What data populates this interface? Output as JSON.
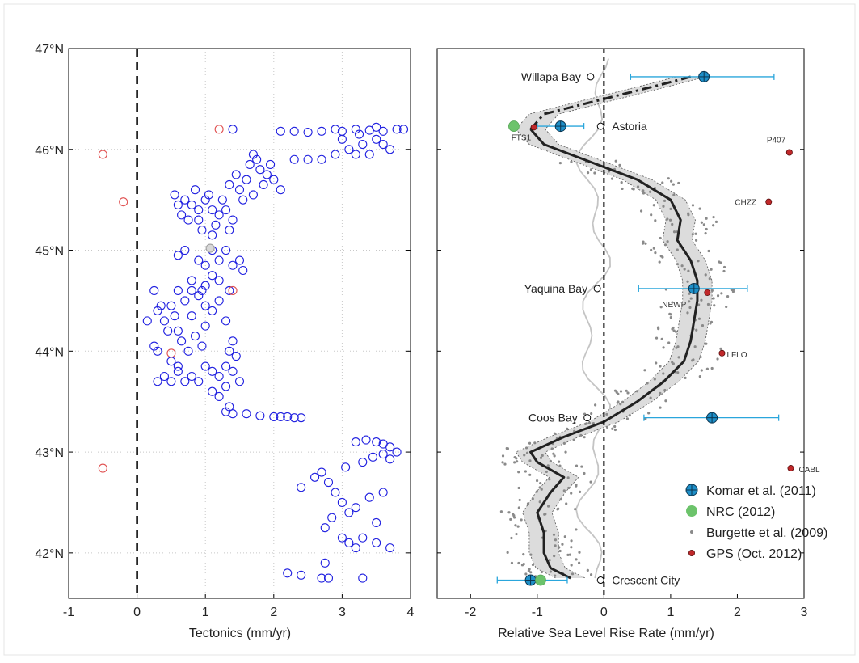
{
  "chart_data": [
    {
      "type": "scatter",
      "xlabel": "Tectonics (mm/yr)",
      "ylabel": "",
      "xlim": [
        -1,
        4
      ],
      "ylim": [
        41.55,
        47
      ],
      "x_ticks": [
        "-1",
        "0",
        "1",
        "2",
        "3",
        "4"
      ],
      "y_ticks": [
        "42°N",
        "43°N",
        "44°N",
        "45°N",
        "46°N",
        "47°N"
      ],
      "grid": true,
      "reference_line_x": 0,
      "series": [
        {
          "color": "#2020e0",
          "points": [
            [
              0.7,
              45.5
            ],
            [
              0.8,
              45.45
            ],
            [
              0.9,
              45.4
            ],
            [
              1.0,
              45.5
            ],
            [
              0.65,
              45.35
            ],
            [
              0.75,
              45.3
            ],
            [
              1.1,
              45.4
            ],
            [
              0.85,
              45.6
            ],
            [
              1.2,
              45.35
            ],
            [
              0.95,
              45.2
            ],
            [
              1.05,
              45.55
            ],
            [
              1.15,
              45.25
            ],
            [
              1.3,
              45.4
            ],
            [
              0.6,
              45.45
            ],
            [
              0.9,
              45.3
            ],
            [
              1.25,
              45.5
            ],
            [
              1.35,
              45.2
            ],
            [
              1.4,
              45.3
            ],
            [
              0.55,
              45.55
            ],
            [
              1.1,
              45.15
            ],
            [
              1.5,
              45.6
            ],
            [
              1.6,
              45.7
            ],
            [
              1.7,
              45.55
            ],
            [
              1.8,
              45.8
            ],
            [
              1.9,
              45.75
            ],
            [
              2.0,
              45.7
            ],
            [
              1.65,
              45.85
            ],
            [
              1.75,
              45.9
            ],
            [
              1.85,
              45.65
            ],
            [
              1.55,
              45.5
            ],
            [
              1.95,
              45.85
            ],
            [
              2.1,
              45.6
            ],
            [
              1.45,
              45.75
            ],
            [
              1.35,
              45.65
            ],
            [
              1.7,
              45.95
            ],
            [
              2.3,
              45.9
            ],
            [
              2.5,
              45.9
            ],
            [
              2.7,
              45.9
            ],
            [
              2.9,
              45.95
            ],
            [
              3.1,
              46.0
            ],
            [
              3.2,
              45.95
            ],
            [
              3.3,
              46.05
            ],
            [
              3.4,
              45.95
            ],
            [
              3.5,
              46.1
            ],
            [
              3.6,
              46.05
            ],
            [
              3.7,
              46.0
            ],
            [
              3.0,
              46.1
            ],
            [
              3.25,
              46.15
            ],
            [
              1.4,
              46.2
            ],
            [
              2.1,
              46.18
            ],
            [
              2.3,
              46.18
            ],
            [
              2.5,
              46.17
            ],
            [
              2.7,
              46.18
            ],
            [
              2.9,
              46.2
            ],
            [
              3.0,
              46.18
            ],
            [
              3.2,
              46.2
            ],
            [
              3.4,
              46.19
            ],
            [
              3.6,
              46.18
            ],
            [
              3.8,
              46.2
            ],
            [
              3.9,
              46.2
            ],
            [
              3.5,
              46.22
            ],
            [
              0.6,
              44.95
            ],
            [
              0.7,
              45.0
            ],
            [
              0.9,
              44.9
            ],
            [
              1.0,
              44.85
            ],
            [
              1.1,
              45.0
            ],
            [
              1.2,
              44.9
            ],
            [
              1.3,
              45.0
            ],
            [
              1.4,
              44.85
            ],
            [
              0.8,
              44.7
            ],
            [
              1.0,
              44.65
            ],
            [
              1.2,
              44.7
            ],
            [
              1.35,
              44.6
            ],
            [
              1.5,
              44.9
            ],
            [
              1.55,
              44.8
            ],
            [
              1.1,
              44.75
            ],
            [
              0.95,
              44.6
            ],
            [
              0.3,
              44.4
            ],
            [
              0.4,
              44.3
            ],
            [
              0.5,
              44.45
            ],
            [
              0.6,
              44.2
            ],
            [
              0.7,
              44.5
            ],
            [
              0.8,
              44.35
            ],
            [
              0.9,
              44.55
            ],
            [
              1.0,
              44.25
            ],
            [
              1.1,
              44.4
            ],
            [
              1.2,
              44.5
            ],
            [
              0.65,
              44.1
            ],
            [
              0.75,
              44.0
            ],
            [
              0.85,
              44.15
            ],
            [
              0.95,
              44.05
            ],
            [
              0.55,
              44.35
            ],
            [
              0.45,
              44.2
            ],
            [
              0.35,
              44.45
            ],
            [
              0.25,
              44.6
            ],
            [
              0.15,
              44.3
            ],
            [
              0.6,
              44.6
            ],
            [
              0.8,
              44.6
            ],
            [
              1.0,
              44.45
            ],
            [
              1.3,
              44.3
            ],
            [
              1.4,
              44.1
            ],
            [
              0.3,
              43.7
            ],
            [
              0.4,
              43.75
            ],
            [
              0.5,
              43.7
            ],
            [
              0.6,
              43.8
            ],
            [
              0.7,
              43.7
            ],
            [
              0.8,
              43.75
            ],
            [
              0.9,
              43.7
            ],
            [
              1.0,
              43.85
            ],
            [
              1.1,
              43.8
            ],
            [
              1.2,
              43.75
            ],
            [
              1.3,
              43.85
            ],
            [
              1.4,
              43.8
            ],
            [
              1.1,
              43.6
            ],
            [
              1.2,
              43.55
            ],
            [
              1.3,
              43.65
            ],
            [
              1.5,
              43.7
            ],
            [
              1.45,
              43.95
            ],
            [
              1.35,
              44.0
            ],
            [
              0.5,
              43.9
            ],
            [
              0.6,
              43.85
            ],
            [
              0.3,
              44.0
            ],
            [
              0.25,
              44.05
            ],
            [
              1.3,
              43.4
            ],
            [
              1.4,
              43.38
            ],
            [
              1.6,
              43.38
            ],
            [
              1.8,
              43.36
            ],
            [
              2.0,
              43.35
            ],
            [
              2.1,
              43.35
            ],
            [
              2.2,
              43.35
            ],
            [
              2.3,
              43.34
            ],
            [
              2.4,
              43.34
            ],
            [
              1.35,
              43.45
            ],
            [
              3.2,
              43.1
            ],
            [
              3.35,
              43.12
            ],
            [
              3.5,
              43.1
            ],
            [
              3.6,
              43.08
            ],
            [
              3.7,
              43.05
            ],
            [
              3.8,
              43.0
            ],
            [
              3.6,
              42.98
            ],
            [
              3.7,
              42.93
            ],
            [
              3.45,
              42.95
            ],
            [
              3.3,
              42.9
            ],
            [
              2.6,
              42.75
            ],
            [
              2.7,
              42.8
            ],
            [
              2.8,
              42.7
            ],
            [
              2.9,
              42.6
            ],
            [
              3.0,
              42.5
            ],
            [
              3.1,
              42.4
            ],
            [
              3.2,
              42.45
            ],
            [
              2.85,
              42.35
            ],
            [
              2.75,
              42.25
            ],
            [
              3.0,
              42.15
            ],
            [
              3.1,
              42.1
            ],
            [
              3.2,
              42.05
            ],
            [
              3.3,
              42.15
            ],
            [
              3.5,
              42.1
            ],
            [
              3.7,
              42.05
            ],
            [
              3.5,
              42.3
            ],
            [
              3.4,
              42.55
            ],
            [
              3.6,
              42.6
            ],
            [
              2.4,
              42.65
            ],
            [
              3.05,
              42.85
            ],
            [
              2.2,
              41.8
            ],
            [
              2.4,
              41.78
            ],
            [
              2.7,
              41.75
            ],
            [
              2.8,
              41.75
            ],
            [
              3.3,
              41.75
            ],
            [
              2.75,
              41.9
            ]
          ]
        },
        {
          "color": "#e05050",
          "points": [
            [
              -0.5,
              45.95
            ],
            [
              -0.2,
              45.48
            ],
            [
              1.2,
              46.2
            ],
            [
              1.4,
              44.6
            ],
            [
              0.5,
              43.98
            ],
            [
              -0.5,
              42.84
            ]
          ]
        },
        {
          "color": "#a0a0a0",
          "points": [
            [
              1.07,
              45.02
            ]
          ]
        }
      ]
    },
    {
      "type": "line",
      "xlabel": "Relative Sea Level Rise Rate (mm/yr)",
      "ylabel": "",
      "xlim": [
        -2.5,
        3
      ],
      "ylim": [
        41.55,
        47
      ],
      "x_ticks": [
        "-2",
        "-1",
        "0",
        "1",
        "2",
        "3"
      ],
      "reference_line_x": 0,
      "legend_position": "bottom-right",
      "legend": [
        "Komar et al. (2011)",
        "NRC (2012)",
        "Burgette et al. (2009)",
        "GPS (Oct. 2012)"
      ],
      "trend_curve": {
        "y": [
          46.72,
          46.65,
          46.5,
          46.35,
          46.2,
          46.05,
          45.9,
          45.7,
          45.5,
          45.3,
          45.1,
          44.9,
          44.7,
          44.5,
          44.3,
          44.1,
          43.9,
          43.7,
          43.5,
          43.3,
          43.15,
          43.0,
          42.9,
          42.75,
          42.6,
          42.4,
          42.2,
          42.0,
          41.85,
          41.75
        ],
        "x": [
          1.3,
          0.9,
          0.0,
          -0.9,
          -1.1,
          -0.9,
          -0.3,
          0.5,
          1.0,
          1.15,
          1.1,
          1.3,
          1.4,
          1.4,
          1.35,
          1.3,
          1.2,
          0.9,
          0.5,
          0.0,
          -0.6,
          -1.1,
          -1.0,
          -0.6,
          -0.8,
          -1.0,
          -0.9,
          -0.9,
          -0.8,
          -0.5
        ],
        "dashed_above_y": 46.2
      },
      "komar": [
        {
          "site": "Willapa Bay",
          "y": 46.72,
          "x": 1.5,
          "lo": 0.4,
          "hi": 2.55
        },
        {
          "site": "Astoria",
          "y": 46.23,
          "x": -0.65,
          "lo": -1.0,
          "hi": -0.3
        },
        {
          "site": "Yaquina Bay",
          "y": 44.62,
          "x": 1.35,
          "lo": 0.52,
          "hi": 2.15
        },
        {
          "site": "Coos Bay",
          "y": 43.34,
          "x": 1.62,
          "lo": 0.6,
          "hi": 2.62
        },
        {
          "site": "Crescent City",
          "y": 41.73,
          "x": -1.1,
          "lo": -1.6,
          "hi": -0.55
        }
      ],
      "nrc": [
        {
          "y": 46.23,
          "x": -1.35
        },
        {
          "y": 41.73,
          "x": -0.95
        }
      ],
      "gps": [
        {
          "label": "FTS1",
          "x": -1.05,
          "y": 46.22
        },
        {
          "label": "P407",
          "x": 2.78,
          "y": 45.97
        },
        {
          "label": "CHZZ",
          "x": 2.47,
          "y": 45.48
        },
        {
          "label": "NEWP",
          "x": 1.55,
          "y": 44.58
        },
        {
          "label": "LFLO",
          "x": 1.77,
          "y": 43.98
        },
        {
          "label": "CABL",
          "x": 2.8,
          "y": 42.84
        }
      ],
      "stations": [
        {
          "name": "Willapa Bay",
          "x": -0.2,
          "y": 46.72
        },
        {
          "name": "Astoria",
          "x": -0.05,
          "y": 46.23
        },
        {
          "name": "Yaquina Bay",
          "x": -0.1,
          "y": 44.62
        },
        {
          "name": "Coos Bay",
          "x": -0.25,
          "y": 43.34
        },
        {
          "name": "Crescent City",
          "x": -0.05,
          "y": 41.73
        }
      ]
    }
  ]
}
